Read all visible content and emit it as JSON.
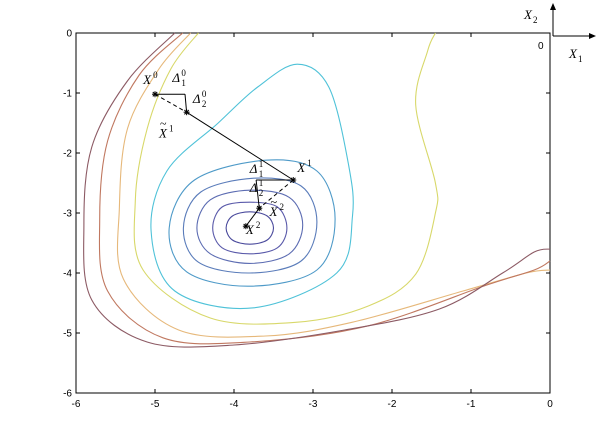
{
  "chart_data": {
    "type": "line",
    "xlim": [
      -6,
      0
    ],
    "ylim": [
      -6,
      0
    ],
    "xticks": [
      "-6",
      "-5",
      "-4",
      "-3",
      "-2",
      "-1",
      "0"
    ],
    "yticks": [
      "0",
      "-1",
      "-2",
      "-3",
      "-4",
      "-5",
      "-6"
    ],
    "grid": false,
    "contour_center": [
      -3.8,
      -3.25
    ],
    "contour_levels": [
      {
        "color": "#4a4a9c",
        "points": [
          [
            -3.8,
            -2.98
          ],
          [
            -3.58,
            -3.05
          ],
          [
            -3.5,
            -3.25
          ],
          [
            -3.58,
            -3.45
          ],
          [
            -3.8,
            -3.52
          ],
          [
            -4.02,
            -3.45
          ],
          [
            -4.1,
            -3.25
          ],
          [
            -4.02,
            -3.05
          ]
        ]
      },
      {
        "color": "#5a5aaa",
        "points": [
          [
            -3.8,
            -2.82
          ],
          [
            -3.45,
            -2.9
          ],
          [
            -3.33,
            -3.25
          ],
          [
            -3.45,
            -3.58
          ],
          [
            -3.8,
            -3.68
          ],
          [
            -4.15,
            -3.58
          ],
          [
            -4.27,
            -3.25
          ],
          [
            -4.15,
            -2.9
          ]
        ]
      },
      {
        "color": "#5c6cb2",
        "points": [
          [
            -3.8,
            -2.62
          ],
          [
            -3.3,
            -2.74
          ],
          [
            -3.13,
            -3.2
          ],
          [
            -3.3,
            -3.68
          ],
          [
            -3.8,
            -3.84
          ],
          [
            -4.3,
            -3.68
          ],
          [
            -4.47,
            -3.25
          ],
          [
            -4.3,
            -2.78
          ]
        ]
      },
      {
        "color": "#5a7cba",
        "points": [
          [
            -3.75,
            -2.42
          ],
          [
            -3.15,
            -2.55
          ],
          [
            -2.95,
            -3.15
          ],
          [
            -3.15,
            -3.8
          ],
          [
            -3.8,
            -4.0
          ],
          [
            -4.45,
            -3.82
          ],
          [
            -4.64,
            -3.25
          ],
          [
            -4.42,
            -2.65
          ]
        ]
      },
      {
        "color": "#4e9ac8",
        "points": [
          [
            -3.6,
            -2.12
          ],
          [
            -2.95,
            -2.3
          ],
          [
            -2.72,
            -3.1
          ],
          [
            -2.95,
            -3.95
          ],
          [
            -3.8,
            -4.22
          ],
          [
            -4.6,
            -3.98
          ],
          [
            -4.82,
            -3.25
          ],
          [
            -4.5,
            -2.45
          ]
        ]
      },
      {
        "color": "#4fc2d8",
        "points": [
          [
            -3.2,
            -0.52
          ],
          [
            -2.8,
            -0.9
          ],
          [
            -2.55,
            -2.2
          ],
          [
            -2.5,
            -3.05
          ],
          [
            -2.7,
            -4.0
          ],
          [
            -3.75,
            -4.58
          ],
          [
            -4.75,
            -4.3
          ],
          [
            -5.05,
            -3.3
          ],
          [
            -4.85,
            -2.3
          ],
          [
            -4.2,
            -1.5
          ],
          [
            -3.7,
            -0.9
          ]
        ]
      },
      {
        "color": "#d8d86a",
        "points": [
          [
            -4.45,
            0
          ],
          [
            -4.8,
            -0.6
          ],
          [
            -5.1,
            -1.6
          ],
          [
            -5.25,
            -2.8
          ],
          [
            -5.15,
            -3.95
          ],
          [
            -4.3,
            -4.75
          ],
          [
            -3.2,
            -4.82
          ],
          [
            -2.3,
            -4.55
          ],
          [
            -1.7,
            -4.02
          ],
          [
            -1.45,
            -3.0
          ],
          [
            -1.45,
            -2.5
          ],
          [
            -1.7,
            -1.2
          ],
          [
            -1.55,
            -0.3
          ],
          [
            -1.45,
            0
          ]
        ]
      },
      {
        "color": "#e6b87a",
        "points": [
          [
            -4.55,
            0
          ],
          [
            -4.95,
            -0.6
          ],
          [
            -5.35,
            -1.6
          ],
          [
            -5.45,
            -2.9
          ],
          [
            -5.4,
            -4.1
          ],
          [
            -4.7,
            -4.95
          ],
          [
            -3.6,
            -5.05
          ],
          [
            -2.5,
            -4.82
          ],
          [
            -1.1,
            -4.3
          ],
          [
            -0.3,
            -4.0
          ],
          [
            0,
            -3.95
          ]
        ]
      },
      {
        "color": "#c07860",
        "points": [
          [
            -4.65,
            0
          ],
          [
            -5.2,
            -0.7
          ],
          [
            -5.6,
            -1.8
          ],
          [
            -5.7,
            -3.1
          ],
          [
            -5.6,
            -4.3
          ],
          [
            -4.9,
            -5.08
          ],
          [
            -3.8,
            -5.15
          ],
          [
            -2.3,
            -4.88
          ],
          [
            -0.8,
            -4.2
          ],
          [
            -0.2,
            -3.95
          ],
          [
            0,
            -3.8
          ]
        ]
      },
      {
        "color": "#8c5a64",
        "points": [
          [
            -4.75,
            0
          ],
          [
            -5.35,
            -0.8
          ],
          [
            -5.8,
            -1.9
          ],
          [
            -5.9,
            -3.2
          ],
          [
            -5.8,
            -4.45
          ],
          [
            -5.1,
            -5.15
          ],
          [
            -4.0,
            -5.2
          ],
          [
            -2.6,
            -4.95
          ],
          [
            -1.4,
            -4.6
          ],
          [
            -0.6,
            -4.0
          ],
          [
            -0.2,
            -3.65
          ],
          [
            0,
            -3.6
          ]
        ]
      }
    ],
    "points": [
      {
        "name": "X",
        "sup": "0",
        "x": -5.0,
        "y": -1.02
      },
      {
        "name": "X",
        "sup": "1",
        "x": -3.25,
        "y": -2.45
      },
      {
        "name": "X",
        "sup": "2",
        "x": -3.85,
        "y": -3.22
      }
    ],
    "annotations": [
      {
        "text": "X",
        "sup": "0",
        "x": -5.15,
        "y": -0.85
      },
      {
        "text": "Δ",
        "sub": "1",
        "sup": "0",
        "x": -4.78,
        "y": -0.82
      },
      {
        "text": "Δ",
        "sub": "2",
        "sup": "0",
        "x": -4.52,
        "y": -1.17
      },
      {
        "text": "X",
        "sup": "1",
        "accent": "~",
        "x": -4.95,
        "y": -1.74
      },
      {
        "text": "Δ",
        "sub": "1",
        "sup": "1",
        "x": -3.8,
        "y": -2.33
      },
      {
        "text": "X",
        "sup": "1",
        "x": -3.2,
        "y": -2.32
      },
      {
        "text": "Δ",
        "sub": "2",
        "sup": "1",
        "x": -3.8,
        "y": -2.65
      },
      {
        "text": "X",
        "sup": "2",
        "accent": "~",
        "x": -3.55,
        "y": -3.05
      },
      {
        "text": "X",
        "sup": "2",
        "x": -3.85,
        "y": -3.35
      }
    ],
    "coordinate_axes_icon": {
      "x_label": "X",
      "x_sub": "1",
      "y_label": "X",
      "y_sub": "2",
      "origin_label": "0"
    }
  }
}
